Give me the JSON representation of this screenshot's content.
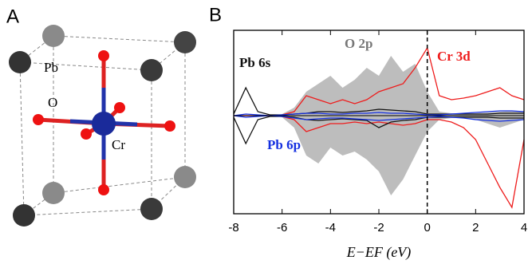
{
  "figure": {
    "panel_a": {
      "label": "A",
      "atoms": [
        "Pb",
        "O",
        "Cr"
      ]
    },
    "panel_b": {
      "label": "B"
    }
  },
  "chart_data": {
    "type": "line",
    "x_label": "E−EF (eV)",
    "x": [
      -8,
      -7.5,
      -7,
      -6.5,
      -6,
      -5.5,
      -5,
      -4.5,
      -4,
      -3.5,
      -3,
      -2.5,
      -2,
      -1.5,
      -1,
      -0.5,
      0,
      0.5,
      1,
      1.5,
      2,
      2.5,
      3,
      3.5,
      4
    ],
    "xlim": [
      -8,
      4
    ],
    "xticks": [
      -8,
      -6,
      -4,
      -2,
      0,
      2,
      4
    ],
    "ylim": [
      -1.23,
      1.07
    ],
    "vline": 0,
    "series": [
      {
        "name": "O 2p",
        "color": "#bdbdbd",
        "fill": true,
        "values": [
          0,
          0,
          0,
          0,
          0.02,
          0.1,
          0.3,
          0.4,
          0.5,
          0.35,
          0.45,
          0.6,
          0.5,
          0.75,
          0.55,
          0.65,
          0.3,
          0.05,
          0.03,
          0.03,
          0.03,
          0.04,
          0.05,
          0.06,
          0.05
        ],
        "values_down": [
          0,
          0,
          0,
          0,
          -0.02,
          -0.15,
          -0.5,
          -0.6,
          -0.4,
          -0.5,
          -0.45,
          -0.55,
          -0.7,
          -1.0,
          -0.8,
          -0.5,
          -0.2,
          -0.05,
          -0.03,
          -0.03,
          -0.05,
          -0.1,
          -0.15,
          -0.1,
          -0.05
        ]
      },
      {
        "name": "Cr 3d",
        "color": "#ee1c1c",
        "fill": false,
        "values": [
          0,
          0,
          0,
          0,
          0.01,
          0.05,
          0.25,
          0.2,
          0.15,
          0.2,
          0.15,
          0.2,
          0.3,
          0.35,
          0.4,
          0.6,
          0.85,
          0.25,
          0.2,
          0.22,
          0.25,
          0.3,
          0.35,
          0.25,
          0.2
        ],
        "values_down": [
          0,
          0,
          0,
          0,
          -0.01,
          -0.05,
          -0.2,
          -0.15,
          -0.1,
          -0.1,
          -0.08,
          -0.1,
          -0.08,
          -0.1,
          -0.12,
          -0.1,
          -0.05,
          -0.05,
          -0.08,
          -0.15,
          -0.3,
          -0.6,
          -0.9,
          -1.15,
          -0.3
        ]
      },
      {
        "name": "Pb 6s",
        "color": "#111111",
        "fill": false,
        "values": [
          0.02,
          0.35,
          0.05,
          0.01,
          0.01,
          0.02,
          0.03,
          0.05,
          0.05,
          0.04,
          0.05,
          0.06,
          0.08,
          0.07,
          0.06,
          0.05,
          0.02,
          0.02,
          0.02,
          0.02,
          0.02,
          0.02,
          0.03,
          0.03,
          0.03
        ],
        "values_down": [
          -0.02,
          -0.35,
          -0.05,
          -0.01,
          -0.01,
          -0.02,
          -0.05,
          -0.06,
          -0.05,
          -0.04,
          -0.05,
          -0.06,
          -0.15,
          -0.08,
          -0.06,
          -0.05,
          -0.02,
          -0.02,
          -0.02,
          -0.02,
          -0.02,
          -0.02,
          -0.03,
          -0.03,
          -0.03
        ]
      },
      {
        "name": "Pb 6p",
        "color": "#1530e0",
        "fill": false,
        "values": [
          0,
          0.02,
          0.01,
          0,
          0.01,
          0.02,
          0.03,
          0.03,
          0.02,
          0.02,
          0.03,
          0.03,
          0.04,
          0.03,
          0.03,
          0.02,
          0.01,
          0.01,
          0.02,
          0.03,
          0.04,
          0.05,
          0.06,
          0.06,
          0.05
        ],
        "values_down": [
          0,
          -0.02,
          -0.01,
          0,
          -0.01,
          -0.03,
          -0.05,
          -0.04,
          -0.03,
          -0.03,
          -0.04,
          -0.05,
          -0.06,
          -0.05,
          -0.04,
          -0.03,
          -0.02,
          -0.01,
          -0.02,
          -0.03,
          -0.05,
          -0.06,
          -0.07,
          -0.06,
          -0.05
        ]
      }
    ]
  }
}
